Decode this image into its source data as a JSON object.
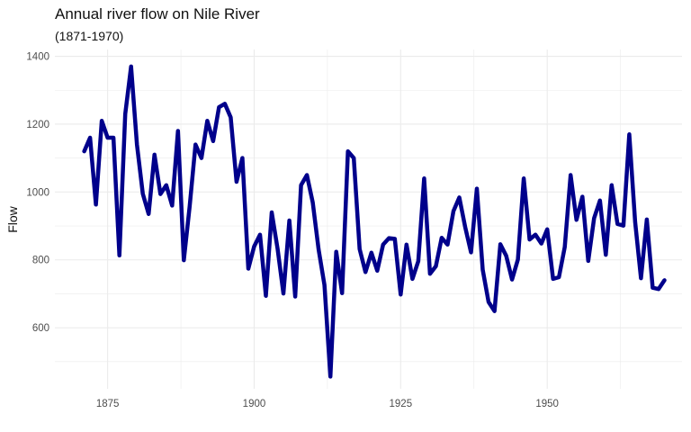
{
  "chart_data": {
    "type": "line",
    "title": "Annual river flow on Nile River",
    "subtitle": "(1871-1970)",
    "xlabel": "",
    "ylabel": "Flow",
    "xlim": [
      1866,
      1973
    ],
    "ylim": [
      420,
      1420
    ],
    "x_ticks": [
      1875,
      1900,
      1925,
      1950
    ],
    "y_ticks": [
      600,
      800,
      1000,
      1200,
      1400
    ],
    "grid": true,
    "legend": "none",
    "line_color": "#00008B",
    "grid_color": "#ebebeb",
    "series": [
      {
        "x": [
          1871,
          1872,
          1873,
          1874,
          1875,
          1876,
          1877,
          1878,
          1879,
          1880,
          1881,
          1882,
          1883,
          1884,
          1885,
          1886,
          1887,
          1888,
          1889,
          1890,
          1891,
          1892,
          1893,
          1894,
          1895,
          1896,
          1897,
          1898,
          1899,
          1900,
          1901,
          1902,
          1903,
          1904,
          1905,
          1906,
          1907,
          1908,
          1909,
          1910,
          1911,
          1912,
          1913,
          1914,
          1915,
          1916,
          1917,
          1918,
          1919,
          1920,
          1921,
          1922,
          1923,
          1924,
          1925,
          1926,
          1927,
          1928,
          1929,
          1930,
          1931,
          1932,
          1933,
          1934,
          1935,
          1936,
          1937,
          1938,
          1939,
          1940,
          1941,
          1942,
          1943,
          1944,
          1945,
          1946,
          1947,
          1948,
          1949,
          1950,
          1951,
          1952,
          1953,
          1954,
          1955,
          1956,
          1957,
          1958,
          1959,
          1960,
          1961,
          1962,
          1963,
          1964,
          1965,
          1966,
          1967,
          1968,
          1969,
          1970
        ],
        "values": [
          1120,
          1160,
          963,
          1210,
          1160,
          1160,
          813,
          1230,
          1370,
          1140,
          995,
          935,
          1110,
          994,
          1020,
          960,
          1180,
          799,
          958,
          1140,
          1100,
          1210,
          1150,
          1250,
          1260,
          1220,
          1030,
          1100,
          774,
          840,
          874,
          694,
          940,
          833,
          701,
          916,
          692,
          1020,
          1050,
          969,
          831,
          726,
          456,
          824,
          702,
          1120,
          1100,
          832,
          764,
          821,
          768,
          845,
          864,
          862,
          698,
          845,
          744,
          796,
          1040,
          759,
          781,
          865,
          845,
          944,
          984,
          897,
          822,
          1010,
          771,
          676,
          649,
          846,
          812,
          742,
          801,
          1040,
          860,
          874,
          848,
          890,
          744,
          749,
          838,
          1050,
          918,
          986,
          797,
          923,
          975,
          815,
          1020,
          906,
          901,
          1170,
          912,
          746,
          919,
          718,
          714,
          740
        ]
      }
    ]
  }
}
